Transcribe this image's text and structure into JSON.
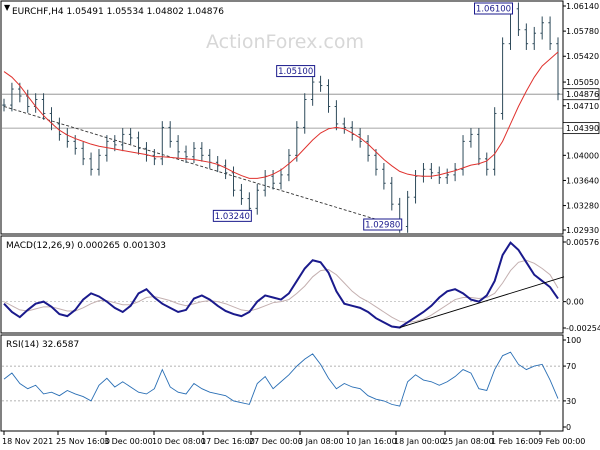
{
  "symbol_header": "EURCHF,H4  1.05491 1.05534 1.04802 1.04876",
  "watermark": "ActionForex.com",
  "colors": {
    "price": "#2e4a5a",
    "ma": "#e0322e",
    "macd": "#1a1a8c",
    "signal": "#c4b0b0",
    "rsi": "#2a6fb5",
    "label_border": "#1a1a8c",
    "label_text": "#1a1a8c",
    "level_line": "#888888",
    "grid": "#d9d9d9"
  },
  "chart_data": [
    {
      "type": "line",
      "panel": "price",
      "ylim": [
        1.0293,
        1.0614
      ],
      "y_ticks": [
        1.0614,
        1.0578,
        1.0542,
        1.0505,
        1.0471,
        1.0435,
        1.04,
        1.0364,
        1.0328,
        1.0293
      ],
      "y_tick_labels": [
        "1.06140",
        "1.05780",
        "1.05420",
        "1.05050",
        "1.04710",
        "1.04350",
        "1.04000",
        "1.03640",
        "1.03280",
        "1.02930"
      ],
      "x_tick_labels": [
        "18 Nov 2021",
        "25 Nov 16:00",
        "3 Dec 00:00",
        "10 Dec 08:00",
        "17 Dec 16:00",
        "27 Dec 00:00",
        "3 Jan 08:00",
        "10 Jan 16:00",
        "18 Jan 00:00",
        "25 Jan 08:00",
        "1 Feb 16:00",
        "9 Feb 00:00"
      ],
      "series": [
        {
          "close": [
            1.0472,
            1.0495,
            1.0485,
            1.047,
            1.048,
            1.046,
            1.0445,
            1.043,
            1.042,
            1.041,
            1.0395,
            1.038,
            1.04,
            1.042,
            1.0415,
            1.043,
            1.0425,
            1.041,
            1.04,
            1.0395,
            1.044,
            1.042,
            1.0405,
            1.0398,
            1.041,
            1.04,
            1.039,
            1.0385,
            1.0375,
            1.035,
            1.0338,
            1.0324,
            1.035,
            1.037,
            1.036,
            1.0372,
            1.04,
            1.044,
            1.048,
            1.0505,
            1.05,
            1.047,
            1.0445,
            1.044,
            1.043,
            1.042,
            1.04,
            1.038,
            1.036,
            1.033,
            1.0298,
            1.034,
            1.037,
            1.038,
            1.0375,
            1.0368,
            1.0372,
            1.038,
            1.042,
            1.043,
            1.0395,
            1.038,
            1.046,
            1.056,
            1.061,
            1.058,
            1.056,
            1.0575,
            1.059,
            1.056,
            1.0488
          ]
        },
        {
          "name": "ma",
          "values": [
            1.052,
            1.0512,
            1.05,
            1.0485,
            1.047,
            1.0457,
            1.0446,
            1.0436,
            1.0429,
            1.0424,
            1.042,
            1.0416,
            1.0413,
            1.0411,
            1.0409,
            1.0407,
            1.0405,
            1.0403,
            1.0401,
            1.0398,
            1.0398,
            1.0397,
            1.0396,
            1.0395,
            1.0394,
            1.0392,
            1.039,
            1.0387,
            1.0382,
            1.0376,
            1.0371,
            1.0367,
            1.0367,
            1.0369,
            1.0373,
            1.0379,
            1.0388,
            1.0398,
            1.041,
            1.0422,
            1.0432,
            1.0438,
            1.044,
            1.0438,
            1.0432,
            1.0425,
            1.0416,
            1.0405,
            1.0394,
            1.0385,
            1.0377,
            1.0373,
            1.0371,
            1.037,
            1.037,
            1.0372,
            1.0375,
            1.0378,
            1.0382,
            1.0386,
            1.0388,
            1.0392,
            1.0402,
            1.042,
            1.0445,
            1.047,
            1.0492,
            1.0512,
            1.0528,
            1.0538,
            1.0548
          ]
        }
      ],
      "annotations": [
        {
          "label": "1.05100",
          "index": 39,
          "value": 1.051,
          "side": "left"
        },
        {
          "label": "1.03240",
          "index": 31,
          "value": 1.0324,
          "side": "left"
        },
        {
          "label": "1.02980",
          "index": 50,
          "value": 1.0298,
          "side": "left"
        },
        {
          "label": "1.06100",
          "index": 64,
          "value": 1.061,
          "side": "left"
        }
      ],
      "price_tags": [
        {
          "label": "1.04876",
          "value": 1.04876
        },
        {
          "label": "1.04390",
          "value": 1.0439
        }
      ],
      "horizontal_levels": [
        1.04876,
        1.0439
      ],
      "trendline": {
        "from_index": 0,
        "from_value": 1.047,
        "to_index": 50,
        "to_value": 1.0298
      }
    },
    {
      "type": "line",
      "panel": "macd",
      "title": "MACD(12,26,9) 0.000265 0.001303",
      "ylim": [
        -0.002546,
        0.005761
      ],
      "y_tick_labels": [
        "0.005761",
        "0.00",
        "-0.002546"
      ],
      "series": [
        {
          "name": "macd",
          "values": [
            -0.0002,
            -0.001,
            -0.0015,
            -0.0008,
            -0.0002,
            0.0,
            -0.0005,
            -0.0012,
            -0.0014,
            -0.0008,
            0.0002,
            0.0008,
            0.0005,
            0.0,
            -0.0006,
            -0.001,
            -0.0004,
            0.0008,
            0.0012,
            0.0004,
            -0.0002,
            -0.0006,
            -0.001,
            -0.0008,
            0.0003,
            0.0006,
            0.0002,
            -0.0004,
            -0.0009,
            -0.0012,
            -0.0014,
            -0.001,
            0.0,
            0.0006,
            0.0004,
            0.0002,
            0.0008,
            0.002,
            0.0032,
            0.004,
            0.0038,
            0.0028,
            0.001,
            -0.0002,
            -0.0004,
            -0.0006,
            -0.001,
            -0.0016,
            -0.002,
            -0.0024,
            -0.0025,
            -0.002,
            -0.0015,
            -0.001,
            -0.0004,
            0.0004,
            0.001,
            0.0012,
            0.0008,
            0.0002,
            0.0,
            0.0006,
            0.002,
            0.0045,
            0.0057,
            0.005,
            0.0038,
            0.0026,
            0.002,
            0.0014,
            0.0003
          ]
        },
        {
          "name": "signal",
          "values": [
            0.0,
            -0.0004,
            -0.0008,
            -0.0009,
            -0.0007,
            -0.0005,
            -0.0005,
            -0.0007,
            -0.0009,
            -0.0009,
            -0.0006,
            -0.0002,
            0.0001,
            0.0001,
            -0.0001,
            -0.0003,
            -0.0003,
            0.0,
            0.0004,
            0.0005,
            0.0003,
            0.0001,
            -0.0002,
            -0.0004,
            -0.0002,
            0.0,
            0.0001,
            0.0,
            -0.0002,
            -0.0005,
            -0.0008,
            -0.0009,
            -0.0007,
            -0.0004,
            -0.0001,
            0.0,
            0.0002,
            0.0008,
            0.0015,
            0.0024,
            0.003,
            0.0031,
            0.0026,
            0.0018,
            0.001,
            0.0004,
            0.0,
            -0.0005,
            -0.001,
            -0.0015,
            -0.0019,
            -0.002,
            -0.0019,
            -0.0017,
            -0.0013,
            -0.0008,
            -0.0003,
            0.0002,
            0.0004,
            0.0004,
            0.0003,
            0.0004,
            0.0008,
            0.0018,
            0.003,
            0.0038,
            0.004,
            0.0037,
            0.0032,
            0.0026,
            0.0013
          ]
        }
      ],
      "trendline": {
        "from_index": 50,
        "from_value": -0.0025,
        "to_index": 70,
        "to_value": 0.0024
      }
    },
    {
      "type": "line",
      "panel": "rsi",
      "title": "RSI(14) 32.6587",
      "ylim": [
        0,
        100
      ],
      "y_ticks": [
        100,
        70,
        30,
        0
      ],
      "y_tick_labels": [
        "100",
        "70",
        "30",
        "0"
      ],
      "series": [
        {
          "name": "rsi",
          "values": [
            55,
            62,
            50,
            44,
            48,
            38,
            40,
            36,
            42,
            38,
            35,
            30,
            48,
            56,
            46,
            52,
            46,
            40,
            38,
            44,
            66,
            46,
            40,
            38,
            50,
            44,
            40,
            38,
            36,
            30,
            28,
            26,
            50,
            58,
            44,
            52,
            60,
            70,
            78,
            84,
            72,
            56,
            44,
            50,
            46,
            44,
            36,
            32,
            30,
            26,
            24,
            52,
            60,
            54,
            52,
            48,
            52,
            58,
            66,
            62,
            44,
            42,
            66,
            82,
            86,
            72,
            66,
            70,
            72,
            54,
            32.66
          ]
        }
      ]
    }
  ]
}
